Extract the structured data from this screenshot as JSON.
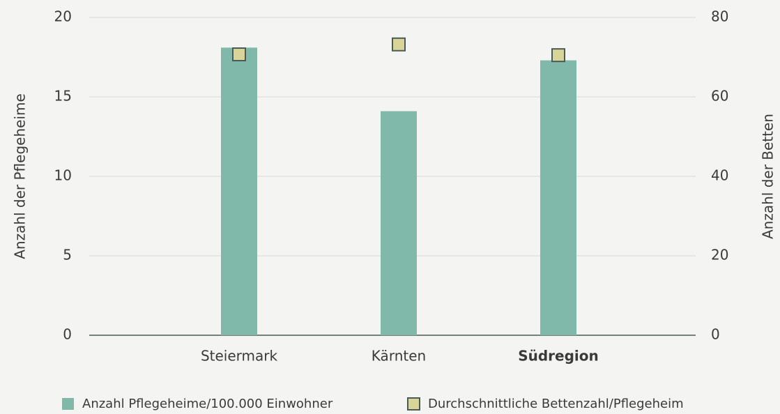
{
  "chart_data": {
    "type": "bar",
    "categories": [
      "Steiermark",
      "Kärnten",
      "Südregion"
    ],
    "series": [
      {
        "name": "Anzahl Pflegeheime/100.000 Einwohner",
        "type": "bar",
        "color": "#80b9aa",
        "values": [
          18.1,
          14.1,
          17.3
        ]
      },
      {
        "name": "Durchschnittliche Bettenzahl/Pflegeheim",
        "type": "marker",
        "axis": "y2",
        "color": "#d9d59a",
        "values": [
          70.7,
          73.2,
          70.5
        ]
      }
    ],
    "ylabel": "Anzahl der Pflegeheime",
    "y2label": "Anzahl der Betten",
    "ylim": [
      0,
      20
    ],
    "yticks": [
      0,
      5,
      10,
      15,
      20
    ],
    "y2lim": [
      0,
      80
    ],
    "y2ticks": [
      0,
      20,
      40,
      60,
      80
    ],
    "grid": true,
    "legend": "bottom"
  }
}
